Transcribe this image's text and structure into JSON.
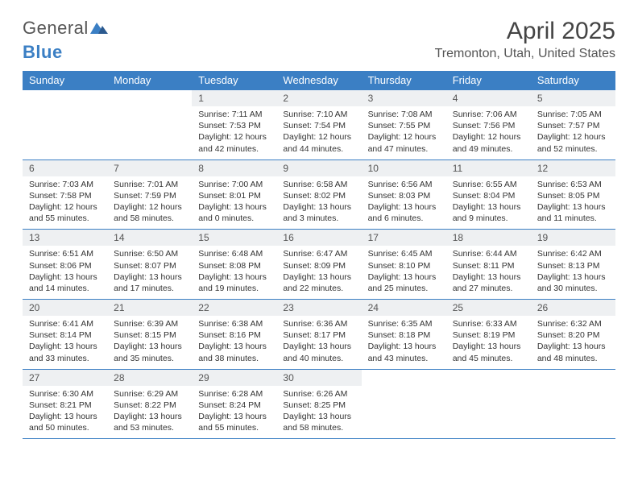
{
  "brand": {
    "part1": "General",
    "part2": "Blue"
  },
  "title": "April 2025",
  "location": "Tremonton, Utah, United States",
  "colors": {
    "header_bg": "#3b7fc4",
    "header_text": "#ffffff",
    "daynum_bg": "#eef0f2",
    "border": "#3b7fc4",
    "body_text": "#333333",
    "title_text": "#444444",
    "logo_gray": "#555555"
  },
  "fonts": {
    "title_size": 30,
    "location_size": 16,
    "th_size": 13,
    "daynum_size": 12,
    "body_size": 10.5
  },
  "day_headers": [
    "Sunday",
    "Monday",
    "Tuesday",
    "Wednesday",
    "Thursday",
    "Friday",
    "Saturday"
  ],
  "weeks": [
    [
      {
        "empty": true
      },
      {
        "empty": true
      },
      {
        "num": "1",
        "sunrise": "Sunrise: 7:11 AM",
        "sunset": "Sunset: 7:53 PM",
        "daylight": "Daylight: 12 hours and 42 minutes."
      },
      {
        "num": "2",
        "sunrise": "Sunrise: 7:10 AM",
        "sunset": "Sunset: 7:54 PM",
        "daylight": "Daylight: 12 hours and 44 minutes."
      },
      {
        "num": "3",
        "sunrise": "Sunrise: 7:08 AM",
        "sunset": "Sunset: 7:55 PM",
        "daylight": "Daylight: 12 hours and 47 minutes."
      },
      {
        "num": "4",
        "sunrise": "Sunrise: 7:06 AM",
        "sunset": "Sunset: 7:56 PM",
        "daylight": "Daylight: 12 hours and 49 minutes."
      },
      {
        "num": "5",
        "sunrise": "Sunrise: 7:05 AM",
        "sunset": "Sunset: 7:57 PM",
        "daylight": "Daylight: 12 hours and 52 minutes."
      }
    ],
    [
      {
        "num": "6",
        "sunrise": "Sunrise: 7:03 AM",
        "sunset": "Sunset: 7:58 PM",
        "daylight": "Daylight: 12 hours and 55 minutes."
      },
      {
        "num": "7",
        "sunrise": "Sunrise: 7:01 AM",
        "sunset": "Sunset: 7:59 PM",
        "daylight": "Daylight: 12 hours and 58 minutes."
      },
      {
        "num": "8",
        "sunrise": "Sunrise: 7:00 AM",
        "sunset": "Sunset: 8:01 PM",
        "daylight": "Daylight: 13 hours and 0 minutes."
      },
      {
        "num": "9",
        "sunrise": "Sunrise: 6:58 AM",
        "sunset": "Sunset: 8:02 PM",
        "daylight": "Daylight: 13 hours and 3 minutes."
      },
      {
        "num": "10",
        "sunrise": "Sunrise: 6:56 AM",
        "sunset": "Sunset: 8:03 PM",
        "daylight": "Daylight: 13 hours and 6 minutes."
      },
      {
        "num": "11",
        "sunrise": "Sunrise: 6:55 AM",
        "sunset": "Sunset: 8:04 PM",
        "daylight": "Daylight: 13 hours and 9 minutes."
      },
      {
        "num": "12",
        "sunrise": "Sunrise: 6:53 AM",
        "sunset": "Sunset: 8:05 PM",
        "daylight": "Daylight: 13 hours and 11 minutes."
      }
    ],
    [
      {
        "num": "13",
        "sunrise": "Sunrise: 6:51 AM",
        "sunset": "Sunset: 8:06 PM",
        "daylight": "Daylight: 13 hours and 14 minutes."
      },
      {
        "num": "14",
        "sunrise": "Sunrise: 6:50 AM",
        "sunset": "Sunset: 8:07 PM",
        "daylight": "Daylight: 13 hours and 17 minutes."
      },
      {
        "num": "15",
        "sunrise": "Sunrise: 6:48 AM",
        "sunset": "Sunset: 8:08 PM",
        "daylight": "Daylight: 13 hours and 19 minutes."
      },
      {
        "num": "16",
        "sunrise": "Sunrise: 6:47 AM",
        "sunset": "Sunset: 8:09 PM",
        "daylight": "Daylight: 13 hours and 22 minutes."
      },
      {
        "num": "17",
        "sunrise": "Sunrise: 6:45 AM",
        "sunset": "Sunset: 8:10 PM",
        "daylight": "Daylight: 13 hours and 25 minutes."
      },
      {
        "num": "18",
        "sunrise": "Sunrise: 6:44 AM",
        "sunset": "Sunset: 8:11 PM",
        "daylight": "Daylight: 13 hours and 27 minutes."
      },
      {
        "num": "19",
        "sunrise": "Sunrise: 6:42 AM",
        "sunset": "Sunset: 8:13 PM",
        "daylight": "Daylight: 13 hours and 30 minutes."
      }
    ],
    [
      {
        "num": "20",
        "sunrise": "Sunrise: 6:41 AM",
        "sunset": "Sunset: 8:14 PM",
        "daylight": "Daylight: 13 hours and 33 minutes."
      },
      {
        "num": "21",
        "sunrise": "Sunrise: 6:39 AM",
        "sunset": "Sunset: 8:15 PM",
        "daylight": "Daylight: 13 hours and 35 minutes."
      },
      {
        "num": "22",
        "sunrise": "Sunrise: 6:38 AM",
        "sunset": "Sunset: 8:16 PM",
        "daylight": "Daylight: 13 hours and 38 minutes."
      },
      {
        "num": "23",
        "sunrise": "Sunrise: 6:36 AM",
        "sunset": "Sunset: 8:17 PM",
        "daylight": "Daylight: 13 hours and 40 minutes."
      },
      {
        "num": "24",
        "sunrise": "Sunrise: 6:35 AM",
        "sunset": "Sunset: 8:18 PM",
        "daylight": "Daylight: 13 hours and 43 minutes."
      },
      {
        "num": "25",
        "sunrise": "Sunrise: 6:33 AM",
        "sunset": "Sunset: 8:19 PM",
        "daylight": "Daylight: 13 hours and 45 minutes."
      },
      {
        "num": "26",
        "sunrise": "Sunrise: 6:32 AM",
        "sunset": "Sunset: 8:20 PM",
        "daylight": "Daylight: 13 hours and 48 minutes."
      }
    ],
    [
      {
        "num": "27",
        "sunrise": "Sunrise: 6:30 AM",
        "sunset": "Sunset: 8:21 PM",
        "daylight": "Daylight: 13 hours and 50 minutes."
      },
      {
        "num": "28",
        "sunrise": "Sunrise: 6:29 AM",
        "sunset": "Sunset: 8:22 PM",
        "daylight": "Daylight: 13 hours and 53 minutes."
      },
      {
        "num": "29",
        "sunrise": "Sunrise: 6:28 AM",
        "sunset": "Sunset: 8:24 PM",
        "daylight": "Daylight: 13 hours and 55 minutes."
      },
      {
        "num": "30",
        "sunrise": "Sunrise: 6:26 AM",
        "sunset": "Sunset: 8:25 PM",
        "daylight": "Daylight: 13 hours and 58 minutes."
      },
      {
        "empty": true
      },
      {
        "empty": true
      },
      {
        "empty": true
      }
    ]
  ]
}
